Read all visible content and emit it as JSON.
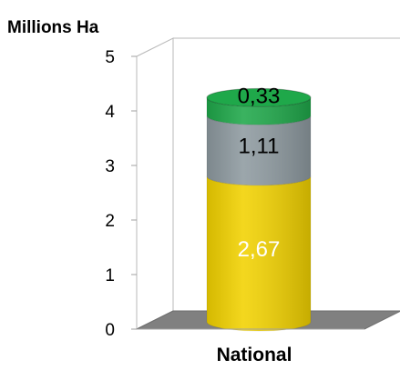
{
  "chart_data": {
    "type": "bar",
    "style": "stacked-cylinder-3d",
    "ylabel": "Millions Ha",
    "xlabel": "",
    "categories": [
      "National"
    ],
    "ylim": [
      0,
      5
    ],
    "yticks": [
      "0",
      "1",
      "2",
      "3",
      "4",
      "5"
    ],
    "grid": false,
    "legend": "none",
    "series": [
      {
        "values": [
          2.67
        ],
        "label": "2,67",
        "color": "#f2d200",
        "label_color": "#ffffff"
      },
      {
        "values": [
          1.11
        ],
        "label": "1,11",
        "color": "#8e9aa0",
        "label_color": "#000000"
      },
      {
        "values": [
          0.33
        ],
        "label": "0,33",
        "color": "#1fa84a",
        "label_color": "#000000"
      }
    ],
    "floor_color": "#808080"
  }
}
